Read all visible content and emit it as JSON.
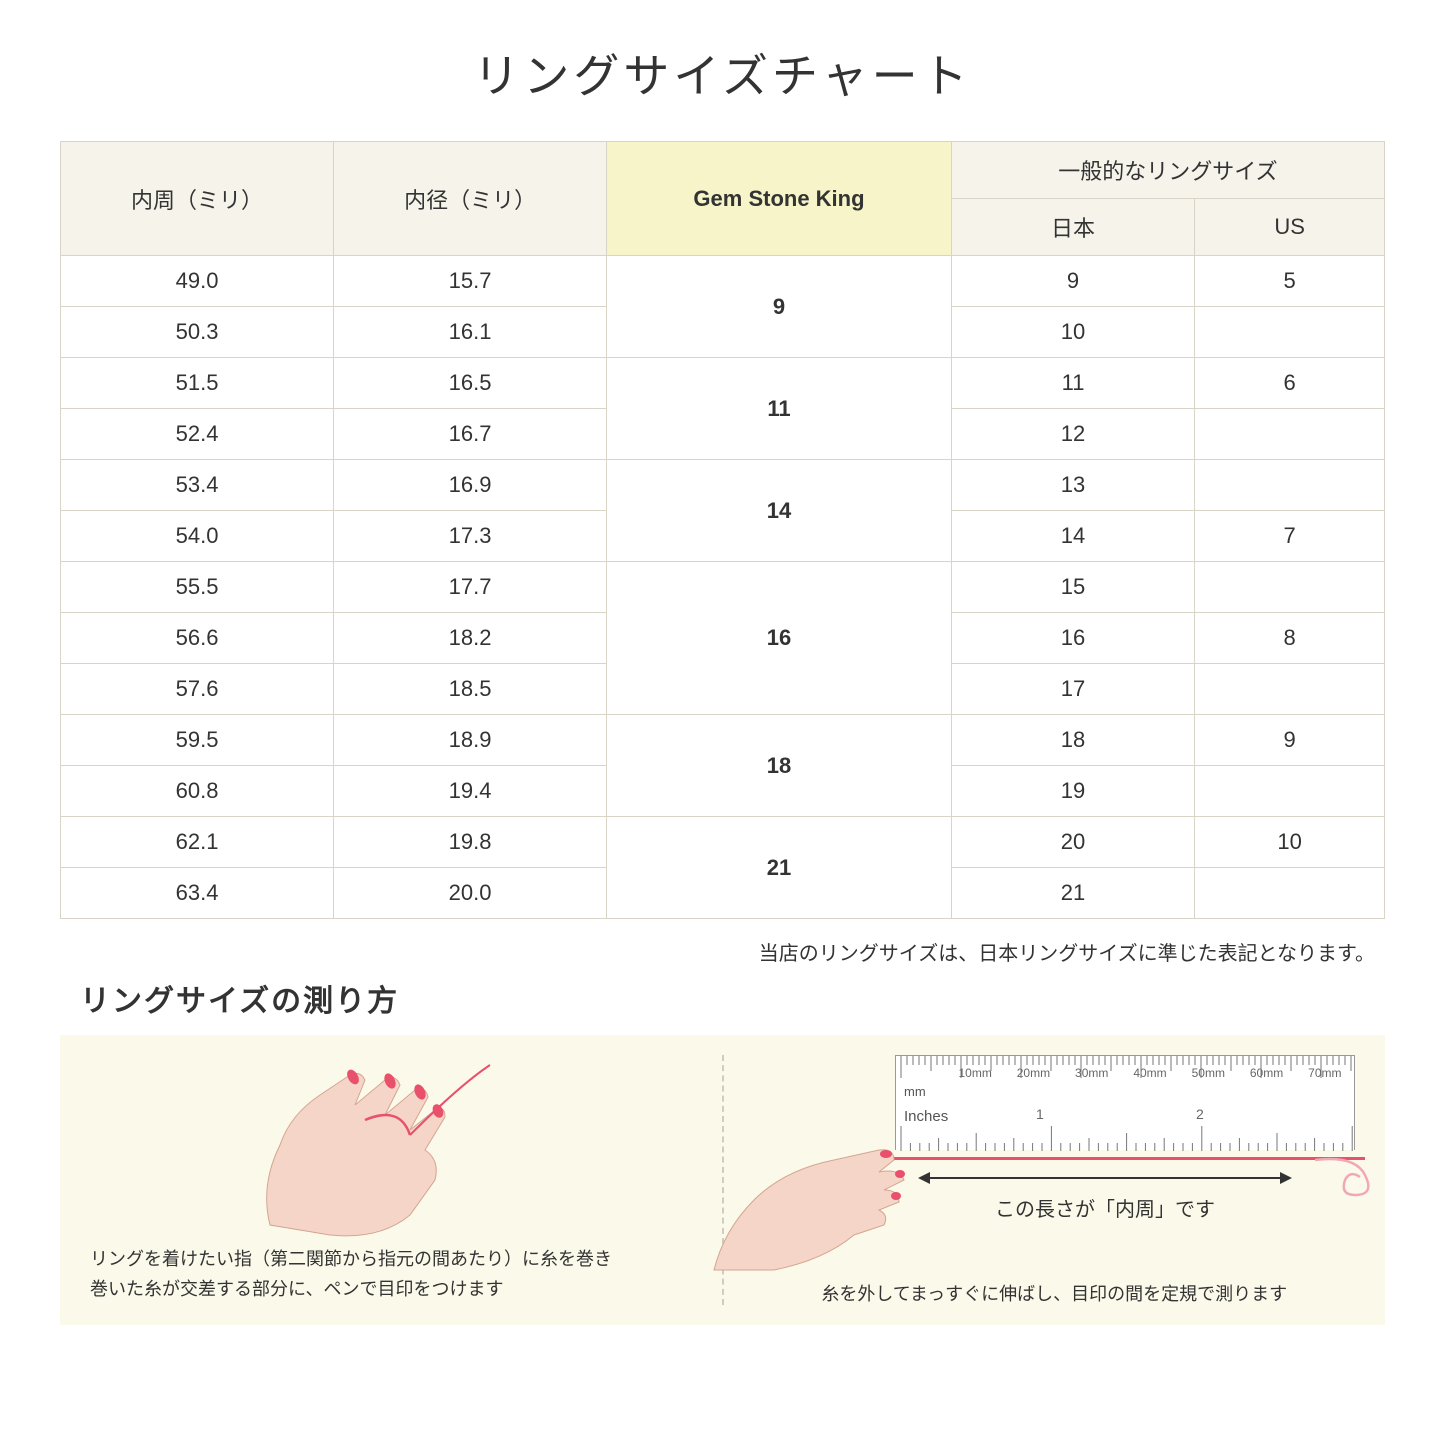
{
  "title": "リングサイズチャート",
  "table": {
    "headers": {
      "circumference": "内周（ミリ）",
      "diameter": "内径（ミリ）",
      "gsk": "Gem Stone King",
      "general": "一般的なリングサイズ",
      "japan": "日本",
      "us": "US"
    },
    "groups": [
      {
        "gsk": "9",
        "rows": [
          {
            "c": "49.0",
            "d": "15.7",
            "jp": "9",
            "us": "5"
          },
          {
            "c": "50.3",
            "d": "16.1",
            "jp": "10",
            "us": ""
          }
        ]
      },
      {
        "gsk": "11",
        "rows": [
          {
            "c": "51.5",
            "d": "16.5",
            "jp": "11",
            "us": "6"
          },
          {
            "c": "52.4",
            "d": "16.7",
            "jp": "12",
            "us": ""
          }
        ]
      },
      {
        "gsk": "14",
        "rows": [
          {
            "c": "53.4",
            "d": "16.9",
            "jp": "13",
            "us": ""
          },
          {
            "c": "54.0",
            "d": "17.3",
            "jp": "14",
            "us": "7"
          }
        ]
      },
      {
        "gsk": "16",
        "rows": [
          {
            "c": "55.5",
            "d": "17.7",
            "jp": "15",
            "us": ""
          },
          {
            "c": "56.6",
            "d": "18.2",
            "jp": "16",
            "us": "8"
          },
          {
            "c": "57.6",
            "d": "18.5",
            "jp": "17",
            "us": ""
          }
        ]
      },
      {
        "gsk": "18",
        "rows": [
          {
            "c": "59.5",
            "d": "18.9",
            "jp": "18",
            "us": "9"
          },
          {
            "c": "60.8",
            "d": "19.4",
            "jp": "19",
            "us": ""
          }
        ]
      },
      {
        "gsk": "21",
        "rows": [
          {
            "c": "62.1",
            "d": "19.8",
            "jp": "20",
            "us": "10"
          },
          {
            "c": "63.4",
            "d": "20.0",
            "jp": "21",
            "us": ""
          }
        ]
      }
    ]
  },
  "note": "当店のリングサイズは、日本リングサイズに準じた表記となります。",
  "measure_title": "リングサイズの測り方",
  "instructions": {
    "left": "リングを着けたい指（第二関節から指元の間あたり）に糸を巻き\n巻いた糸が交差する部分に、ペンで目印をつけます",
    "right": "糸を外してまっすぐに伸ばし、目印の間を定規で測ります",
    "arrow_label": "この長さが「内周」です"
  },
  "ruler": {
    "mm_label": "mm",
    "in_label": "Inches",
    "mm_marks": [
      "10mm",
      "20mm",
      "30mm",
      "40mm",
      "50mm",
      "60mm",
      "70mm"
    ],
    "in_marks": [
      "1",
      "2"
    ]
  },
  "colors": {
    "header_bg": "#f5f3ea",
    "gsk_bg": "#f6f4c8",
    "border": "#d8d4c8",
    "panel_bg": "#fbf9ea",
    "thread": "#e8506b",
    "skin": "#f5d5c8",
    "nail": "#e8506b"
  }
}
